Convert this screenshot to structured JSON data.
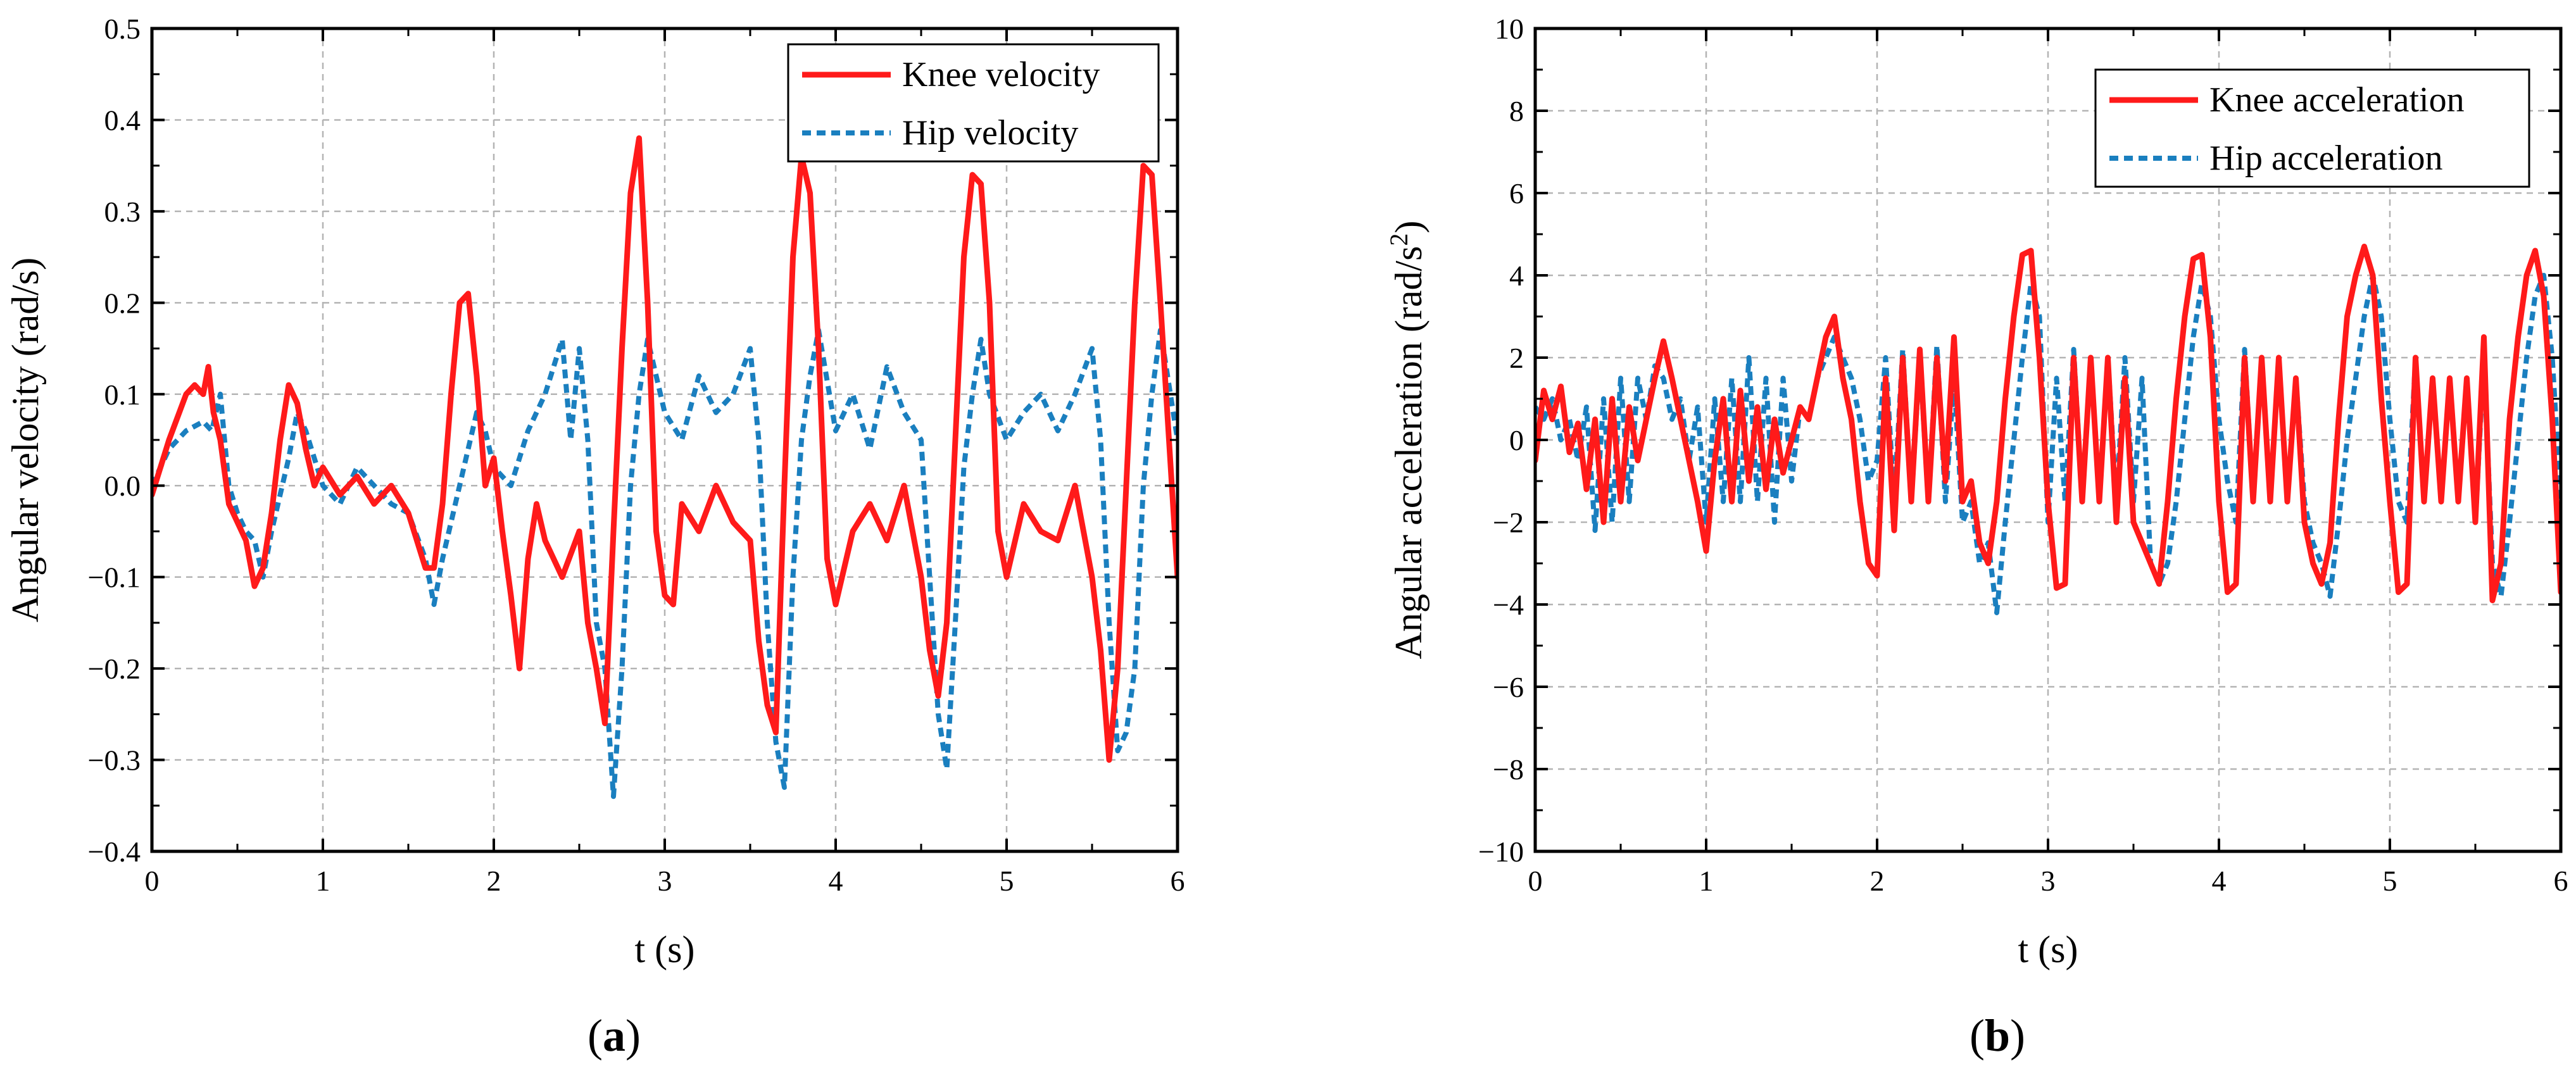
{
  "chart_data": [
    {
      "type": "line",
      "panel_label": "a",
      "title": "",
      "xlabel": "t (s)",
      "ylabel": "Angular velocity (rad/s)",
      "xlim": [
        0,
        6
      ],
      "ylim": [
        -0.4,
        0.5
      ],
      "xticks": [
        "0",
        "1",
        "2",
        "3",
        "4",
        "5",
        "6"
      ],
      "yticks": [
        "−0.4",
        "−0.3",
        "−0.2",
        "−0.1",
        "0.0",
        "0.1",
        "0.2",
        "0.3",
        "0.4",
        "0.5"
      ],
      "grid": true,
      "legend_position": "top-right",
      "series": [
        {
          "name": "Knee velocity",
          "color": "#ff1a1a",
          "style": "solid",
          "x": [
            0,
            0.1,
            0.2,
            0.25,
            0.3,
            0.33,
            0.36,
            0.4,
            0.45,
            0.5,
            0.55,
            0.6,
            0.65,
            0.7,
            0.75,
            0.8,
            0.85,
            0.9,
            0.95,
            1.0,
            1.1,
            1.2,
            1.3,
            1.4,
            1.5,
            1.55,
            1.6,
            1.65,
            1.7,
            1.75,
            1.8,
            1.85,
            1.9,
            1.95,
            2.0,
            2.05,
            2.1,
            2.15,
            2.2,
            2.25,
            2.3,
            2.4,
            2.5,
            2.55,
            2.6,
            2.65,
            2.7,
            2.75,
            2.8,
            2.85,
            2.9,
            2.95,
            3.0,
            3.05,
            3.1,
            3.2,
            3.3,
            3.4,
            3.5,
            3.55,
            3.6,
            3.65,
            3.7,
            3.75,
            3.8,
            3.85,
            3.9,
            3.95,
            4.0,
            4.1,
            4.2,
            4.3,
            4.4,
            4.5,
            4.55,
            4.6,
            4.65,
            4.7,
            4.75,
            4.8,
            4.85,
            4.9,
            4.95,
            5.0,
            5.1,
            5.2,
            5.3,
            5.4,
            5.5,
            5.55,
            5.6,
            5.65,
            5.7,
            5.75,
            5.8,
            5.85,
            5.9,
            5.95,
            6.0
          ],
          "values": [
            -0.01,
            0.05,
            0.1,
            0.11,
            0.1,
            0.13,
            0.08,
            0.05,
            -0.02,
            -0.04,
            -0.06,
            -0.11,
            -0.09,
            -0.03,
            0.05,
            0.11,
            0.09,
            0.04,
            0.0,
            0.02,
            -0.01,
            0.01,
            -0.02,
            0.0,
            -0.03,
            -0.06,
            -0.09,
            -0.09,
            -0.02,
            0.1,
            0.2,
            0.21,
            0.12,
            0.0,
            0.03,
            -0.05,
            -0.12,
            -0.2,
            -0.08,
            -0.02,
            -0.06,
            -0.1,
            -0.05,
            -0.15,
            -0.2,
            -0.26,
            -0.05,
            0.15,
            0.32,
            0.38,
            0.2,
            -0.05,
            -0.12,
            -0.13,
            -0.02,
            -0.05,
            0.0,
            -0.04,
            -0.06,
            -0.17,
            -0.24,
            -0.27,
            0.0,
            0.25,
            0.36,
            0.32,
            0.15,
            -0.08,
            -0.13,
            -0.05,
            -0.02,
            -0.06,
            0.0,
            -0.1,
            -0.18,
            -0.23,
            -0.15,
            0.05,
            0.25,
            0.34,
            0.33,
            0.2,
            -0.05,
            -0.1,
            -0.02,
            -0.05,
            -0.06,
            0.0,
            -0.1,
            -0.18,
            -0.3,
            -0.2,
            0.0,
            0.2,
            0.35,
            0.34,
            0.2,
            0.05,
            -0.1
          ]
        },
        {
          "name": "Hip velocity",
          "color": "#1a7fbf",
          "style": "dashed",
          "x": [
            0,
            0.1,
            0.2,
            0.3,
            0.35,
            0.4,
            0.45,
            0.5,
            0.55,
            0.6,
            0.65,
            0.7,
            0.8,
            0.85,
            0.9,
            1.0,
            1.1,
            1.2,
            1.3,
            1.4,
            1.5,
            1.6,
            1.65,
            1.7,
            1.75,
            1.8,
            1.9,
            1.95,
            2.0,
            2.1,
            2.2,
            2.3,
            2.4,
            2.45,
            2.5,
            2.55,
            2.6,
            2.65,
            2.7,
            2.75,
            2.8,
            2.85,
            2.9,
            3.0,
            3.1,
            3.2,
            3.3,
            3.4,
            3.5,
            3.55,
            3.6,
            3.65,
            3.7,
            3.75,
            3.8,
            3.85,
            3.9,
            4.0,
            4.1,
            4.2,
            4.3,
            4.4,
            4.5,
            4.55,
            4.6,
            4.65,
            4.7,
            4.75,
            4.8,
            4.85,
            4.9,
            5.0,
            5.1,
            5.2,
            5.3,
            5.4,
            5.5,
            5.55,
            5.6,
            5.65,
            5.7,
            5.75,
            5.8,
            5.85,
            5.9,
            6.0
          ],
          "values": [
            0.0,
            0.04,
            0.06,
            0.07,
            0.06,
            0.1,
            0.0,
            -0.03,
            -0.05,
            -0.06,
            -0.1,
            -0.05,
            0.03,
            0.08,
            0.06,
            0.0,
            -0.02,
            0.02,
            0.0,
            -0.02,
            -0.03,
            -0.08,
            -0.13,
            -0.08,
            -0.04,
            0.0,
            0.08,
            0.06,
            0.02,
            0.0,
            0.06,
            0.1,
            0.16,
            0.05,
            0.15,
            0.05,
            -0.15,
            -0.2,
            -0.34,
            -0.2,
            0.0,
            0.1,
            0.16,
            0.08,
            0.05,
            0.12,
            0.08,
            0.1,
            0.15,
            0.05,
            -0.15,
            -0.28,
            -0.33,
            -0.1,
            0.05,
            0.12,
            0.17,
            0.06,
            0.1,
            0.04,
            0.13,
            0.08,
            0.05,
            -0.1,
            -0.25,
            -0.31,
            -0.15,
            0.02,
            0.1,
            0.16,
            0.1,
            0.05,
            0.08,
            0.1,
            0.06,
            0.1,
            0.15,
            0.05,
            -0.15,
            -0.29,
            -0.27,
            -0.2,
            0.0,
            0.1,
            0.17,
            0.05
          ]
        }
      ]
    },
    {
      "type": "line",
      "panel_label": "b",
      "title": "",
      "xlabel": "t (s)",
      "ylabel_main": "Angular acceleration (rad/s",
      "ylabel_sup": "2",
      "ylabel_end": ")",
      "xlim": [
        0,
        6
      ],
      "ylim": [
        -10,
        10
      ],
      "xticks": [
        "0",
        "1",
        "2",
        "3",
        "4",
        "5",
        "6"
      ],
      "yticks": [
        "−10",
        "−8",
        "−6",
        "−4",
        "−2",
        "0",
        "2",
        "4",
        "6",
        "8",
        "10"
      ],
      "grid": true,
      "legend_position": "top-right",
      "series": [
        {
          "name": "Knee acceleration",
          "color": "#ff1a1a",
          "style": "solid",
          "x": [
            0,
            0.05,
            0.1,
            0.15,
            0.2,
            0.25,
            0.3,
            0.35,
            0.4,
            0.45,
            0.5,
            0.55,
            0.6,
            0.65,
            0.7,
            0.75,
            0.8,
            0.85,
            0.9,
            0.95,
            1.0,
            1.05,
            1.1,
            1.15,
            1.2,
            1.25,
            1.3,
            1.35,
            1.4,
            1.45,
            1.5,
            1.55,
            1.6,
            1.65,
            1.7,
            1.75,
            1.8,
            1.85,
            1.9,
            1.95,
            2.0,
            2.05,
            2.1,
            2.15,
            2.2,
            2.25,
            2.3,
            2.35,
            2.4,
            2.45,
            2.5,
            2.55,
            2.6,
            2.65,
            2.7,
            2.75,
            2.8,
            2.85,
            2.9,
            2.95,
            3.0,
            3.05,
            3.1,
            3.15,
            3.2,
            3.25,
            3.3,
            3.35,
            3.4,
            3.45,
            3.5,
            3.55,
            3.6,
            3.65,
            3.7,
            3.75,
            3.8,
            3.85,
            3.9,
            3.95,
            4.0,
            4.05,
            4.1,
            4.15,
            4.2,
            4.25,
            4.3,
            4.35,
            4.4,
            4.45,
            4.5,
            4.55,
            4.6,
            4.65,
            4.7,
            4.75,
            4.8,
            4.85,
            4.9,
            4.95,
            5.0,
            5.05,
            5.1,
            5.15,
            5.2,
            5.25,
            5.3,
            5.35,
            5.4,
            5.45,
            5.5,
            5.55,
            5.6,
            5.65,
            5.7,
            5.75,
            5.8,
            5.85,
            5.9,
            5.95,
            6.0
          ],
          "values": [
            -0.5,
            1.2,
            0.5,
            1.3,
            -0.3,
            0.4,
            -1.2,
            0.5,
            -2.0,
            1.0,
            -1.5,
            0.8,
            -0.5,
            0.5,
            1.5,
            2.4,
            1.5,
            0.5,
            -0.5,
            -1.5,
            -2.7,
            -0.5,
            1.0,
            -1.5,
            1.2,
            -1.0,
            0.8,
            -1.2,
            0.5,
            -0.8,
            0.0,
            0.8,
            0.5,
            1.5,
            2.5,
            3.0,
            1.5,
            0.5,
            -1.5,
            -3.0,
            -3.3,
            1.5,
            -2.2,
            2.0,
            -1.5,
            2.2,
            -1.5,
            2.0,
            -1.0,
            2.5,
            -1.5,
            -1.0,
            -2.5,
            -3.0,
            -1.5,
            1.0,
            3.0,
            4.5,
            4.6,
            2.0,
            -1.5,
            -3.6,
            -3.5,
            2.0,
            -1.5,
            2.0,
            -1.5,
            2.0,
            -2.0,
            1.5,
            -2.0,
            -2.5,
            -3.0,
            -3.5,
            -1.5,
            1.0,
            3.0,
            4.4,
            4.5,
            2.5,
            -1.5,
            -3.7,
            -3.5,
            2.0,
            -1.5,
            2.0,
            -1.5,
            2.0,
            -1.5,
            1.5,
            -2.0,
            -3.0,
            -3.5,
            -2.5,
            0.5,
            3.0,
            4.0,
            4.7,
            4.0,
            1.0,
            -1.5,
            -3.7,
            -3.5,
            2.0,
            -1.5,
            1.5,
            -1.5,
            1.5,
            -1.5,
            1.5,
            -2.0,
            2.5,
            -3.9,
            -3.0,
            0.5,
            2.5,
            4.0,
            4.6,
            3.5,
            0.5,
            -3.7
          ]
        },
        {
          "name": "Hip acceleration",
          "color": "#1a7fbf",
          "style": "dashed",
          "x": [
            0,
            0.05,
            0.1,
            0.15,
            0.2,
            0.25,
            0.3,
            0.35,
            0.4,
            0.45,
            0.5,
            0.55,
            0.6,
            0.65,
            0.7,
            0.75,
            0.8,
            0.85,
            0.9,
            0.95,
            1.0,
            1.05,
            1.1,
            1.15,
            1.2,
            1.25,
            1.3,
            1.35,
            1.4,
            1.45,
            1.5,
            1.55,
            1.6,
            1.65,
            1.7,
            1.75,
            1.8,
            1.85,
            1.9,
            1.95,
            2.0,
            2.05,
            2.1,
            2.15,
            2.2,
            2.25,
            2.3,
            2.35,
            2.4,
            2.45,
            2.5,
            2.55,
            2.6,
            2.65,
            2.7,
            2.75,
            2.8,
            2.85,
            2.9,
            2.95,
            3.0,
            3.05,
            3.1,
            3.15,
            3.2,
            3.25,
            3.3,
            3.35,
            3.4,
            3.45,
            3.5,
            3.55,
            3.6,
            3.65,
            3.7,
            3.75,
            3.8,
            3.85,
            3.9,
            3.95,
            4.0,
            4.05,
            4.1,
            4.15,
            4.2,
            4.25,
            4.3,
            4.35,
            4.4,
            4.45,
            4.5,
            4.55,
            4.6,
            4.65,
            4.7,
            4.75,
            4.8,
            4.85,
            4.9,
            4.95,
            5.0,
            5.05,
            5.1,
            5.15,
            5.2,
            5.25,
            5.3,
            5.35,
            5.4,
            5.45,
            5.5,
            5.55,
            5.6,
            5.65,
            5.7,
            5.75,
            5.8,
            5.85,
            5.9,
            5.95,
            6.0
          ],
          "values": [
            0.8,
            0.5,
            1.0,
            0.0,
            0.5,
            -0.5,
            0.8,
            -2.2,
            1.0,
            -2.0,
            1.5,
            -1.5,
            1.5,
            0.5,
            1.8,
            1.5,
            0.5,
            1.0,
            -0.5,
            0.8,
            -2.0,
            1.0,
            -1.5,
            1.5,
            -1.5,
            2.0,
            -1.5,
            1.5,
            -2.0,
            1.5,
            -1.0,
            0.8,
            0.5,
            1.5,
            2.0,
            2.5,
            2.0,
            1.5,
            0.5,
            -1.0,
            -0.5,
            2.0,
            -1.5,
            2.2,
            -1.5,
            2.0,
            -1.5,
            2.3,
            -1.5,
            1.5,
            -2.0,
            -1.5,
            -3.0,
            -2.5,
            -4.2,
            -2.0,
            0.0,
            2.0,
            3.8,
            3.0,
            -2.0,
            1.5,
            -1.5,
            2.2,
            -1.5,
            2.0,
            -1.5,
            2.0,
            -1.5,
            2.0,
            -1.5,
            1.5,
            -3.0,
            -3.5,
            -3.0,
            -1.5,
            0.5,
            2.5,
            3.8,
            3.0,
            0.5,
            -1.0,
            -2.0,
            2.2,
            -1.5,
            2.0,
            -1.5,
            2.0,
            -1.5,
            1.5,
            -1.5,
            -2.5,
            -3.0,
            -3.8,
            -2.0,
            0.0,
            1.5,
            3.0,
            4.0,
            3.0,
            0.5,
            -1.5,
            -2.0,
            2.0,
            -1.5,
            1.5,
            -1.5,
            1.5,
            -1.5,
            1.5,
            -2.0,
            2.0,
            -3.0,
            -3.8,
            -2.0,
            0.0,
            2.0,
            3.5,
            4.0,
            2.0,
            -1.5
          ]
        }
      ]
    }
  ]
}
